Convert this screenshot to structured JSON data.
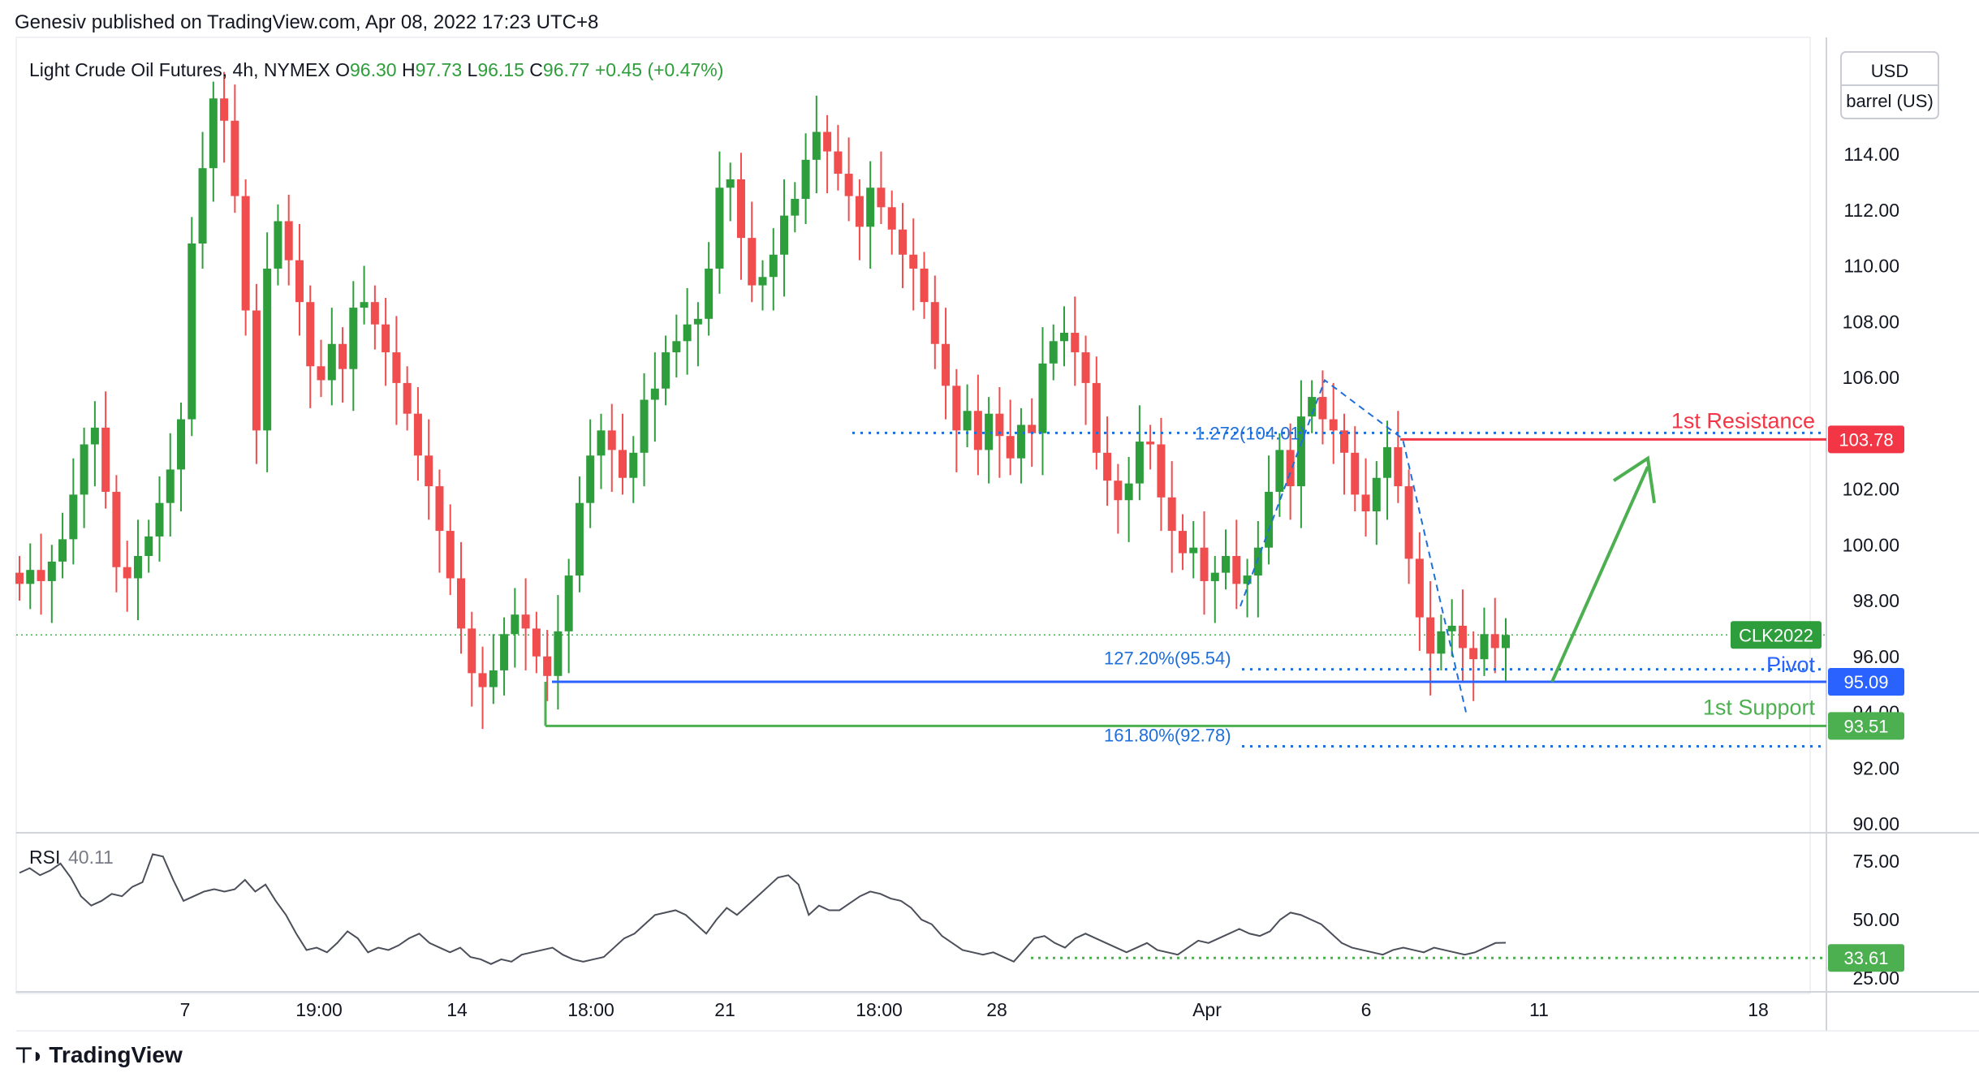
{
  "header": {
    "published": "Genesiv published on TradingView.com, Apr 08, 2022 17:23 UTC+8"
  },
  "footer": {
    "brand": "TradingView",
    "brand_icon": "tradingview-logo-icon"
  },
  "colors": {
    "up": "#26a69a",
    "up_body": "#2e9e3c",
    "down": "#f04d4f",
    "blue": "#2962ff",
    "green": "#4caf50",
    "red": "#f23645",
    "fib": "#1e6fd9"
  },
  "chart_data": {
    "type": "candlestick",
    "symbol_line": {
      "name": "Light Crude Oil Futures, 4h, NYMEX",
      "o_label": "O",
      "o": "96.30",
      "h_label": "H",
      "h": "97.73",
      "l_label": "L",
      "l": "96.15",
      "c_label": "C",
      "c": "96.77",
      "change": "+0.45 (+0.47%)"
    },
    "currency": "USD",
    "unit": "barrel (US)",
    "ylim": [
      89.5,
      116.5
    ],
    "y_ticks": [
      "114.00",
      "112.00",
      "110.00",
      "108.00",
      "106.00",
      "104.00",
      "102.00",
      "100.00",
      "98.00",
      "96.00",
      "94.00",
      "92.00",
      "90.00"
    ],
    "x_ticks": [
      "7",
      "19:00",
      "14",
      "18:00",
      "21",
      "18:00",
      "28",
      "Apr",
      "6",
      "11",
      "18"
    ],
    "close_series": [
      98.6,
      99.1,
      98.7,
      99.4,
      100.2,
      101.8,
      103.6,
      104.2,
      101.9,
      99.2,
      98.8,
      99.6,
      100.3,
      101.5,
      102.7,
      104.5,
      110.8,
      113.5,
      116.0,
      115.2,
      112.5,
      108.4,
      104.1,
      109.9,
      111.6,
      110.2,
      108.7,
      106.4,
      105.9,
      107.2,
      106.3,
      108.5,
      108.7,
      107.9,
      106.9,
      105.8,
      104.7,
      103.2,
      102.1,
      100.5,
      98.8,
      97.0,
      95.4,
      94.9,
      95.5,
      96.8,
      97.5,
      97.0,
      96.0,
      95.3,
      96.9,
      98.9,
      101.5,
      103.2,
      104.1,
      103.4,
      102.4,
      103.3,
      105.2,
      105.6,
      106.9,
      107.3,
      107.9,
      108.1,
      109.9,
      112.8,
      113.1,
      111.0,
      109.3,
      109.6,
      110.4,
      111.8,
      112.4,
      113.8,
      114.8,
      114.1,
      113.3,
      112.5,
      111.4,
      112.8,
      112.1,
      111.3,
      110.4,
      109.9,
      108.7,
      107.2,
      105.7,
      104.1,
      104.8,
      103.4,
      104.7,
      103.9,
      103.1,
      104.3,
      104.0,
      106.5,
      107.3,
      107.6,
      106.9,
      105.8,
      103.3,
      102.3,
      101.6,
      102.2,
      103.7,
      103.6,
      101.7,
      100.5,
      99.7,
      99.9,
      98.7,
      99.0,
      99.6,
      98.6,
      98.9,
      99.9,
      101.9,
      103.4,
      102.1,
      104.6,
      105.3,
      104.5,
      104.1,
      103.3,
      101.8,
      101.2,
      102.4,
      103.5,
      102.1,
      99.5,
      97.4,
      96.1,
      96.9,
      97.1,
      96.3,
      95.9,
      96.8,
      96.3,
      96.77
    ],
    "levels": [
      {
        "name": "1st Resistance",
        "value": 103.78,
        "label": "103.78",
        "color": "#f23645"
      },
      {
        "name": "Pivot",
        "value": 95.09,
        "label": "95.09",
        "color": "#2962ff"
      },
      {
        "name": "1st Support",
        "value": 93.51,
        "label": "93.51",
        "color": "#4caf50"
      }
    ],
    "fib_labels": [
      {
        "text": "1.272(104.01)",
        "value": 104.01
      },
      {
        "text": "127.20%(95.54)",
        "value": 95.54
      },
      {
        "text": "161.80%(92.78)",
        "value": 92.78
      }
    ],
    "last_price_tag": "CLK2022",
    "rsi": {
      "label": "RSI",
      "value": "40.11",
      "ylim": [
        22,
        82
      ],
      "y_ticks": [
        "75.00",
        "50.00",
        "25.00"
      ],
      "marker": {
        "value": 33.61,
        "label": "33.61"
      },
      "series": [
        70,
        72,
        69,
        71,
        74,
        68,
        60,
        56,
        58,
        61,
        60,
        64,
        66,
        78,
        77,
        67,
        58,
        60,
        62,
        63,
        62,
        63,
        67,
        62,
        65,
        58,
        52,
        44,
        37,
        38,
        36,
        40,
        45,
        42,
        36,
        38,
        37,
        39,
        42,
        44,
        40,
        38,
        36,
        38,
        34,
        33,
        31,
        33,
        32,
        35,
        36,
        37,
        38,
        35,
        33,
        32,
        33,
        34,
        38,
        42,
        44,
        48,
        52,
        53,
        54,
        52,
        48,
        44,
        50,
        55,
        52,
        56,
        60,
        64,
        68,
        69,
        65,
        52,
        56,
        54,
        54,
        57,
        60,
        62,
        61,
        59,
        58,
        55,
        50,
        48,
        43,
        40,
        37,
        36,
        35,
        36,
        34,
        32,
        37,
        42,
        43,
        40,
        38,
        42,
        44,
        42,
        40,
        38,
        36,
        38,
        40,
        37,
        36,
        35,
        38,
        41,
        40,
        42,
        44,
        46,
        44,
        43,
        45,
        50,
        53,
        52,
        50,
        48,
        44,
        40,
        38,
        37,
        36,
        35,
        37,
        38,
        37,
        36,
        38,
        37,
        36,
        35,
        36,
        38,
        40,
        40.11
      ]
    }
  }
}
